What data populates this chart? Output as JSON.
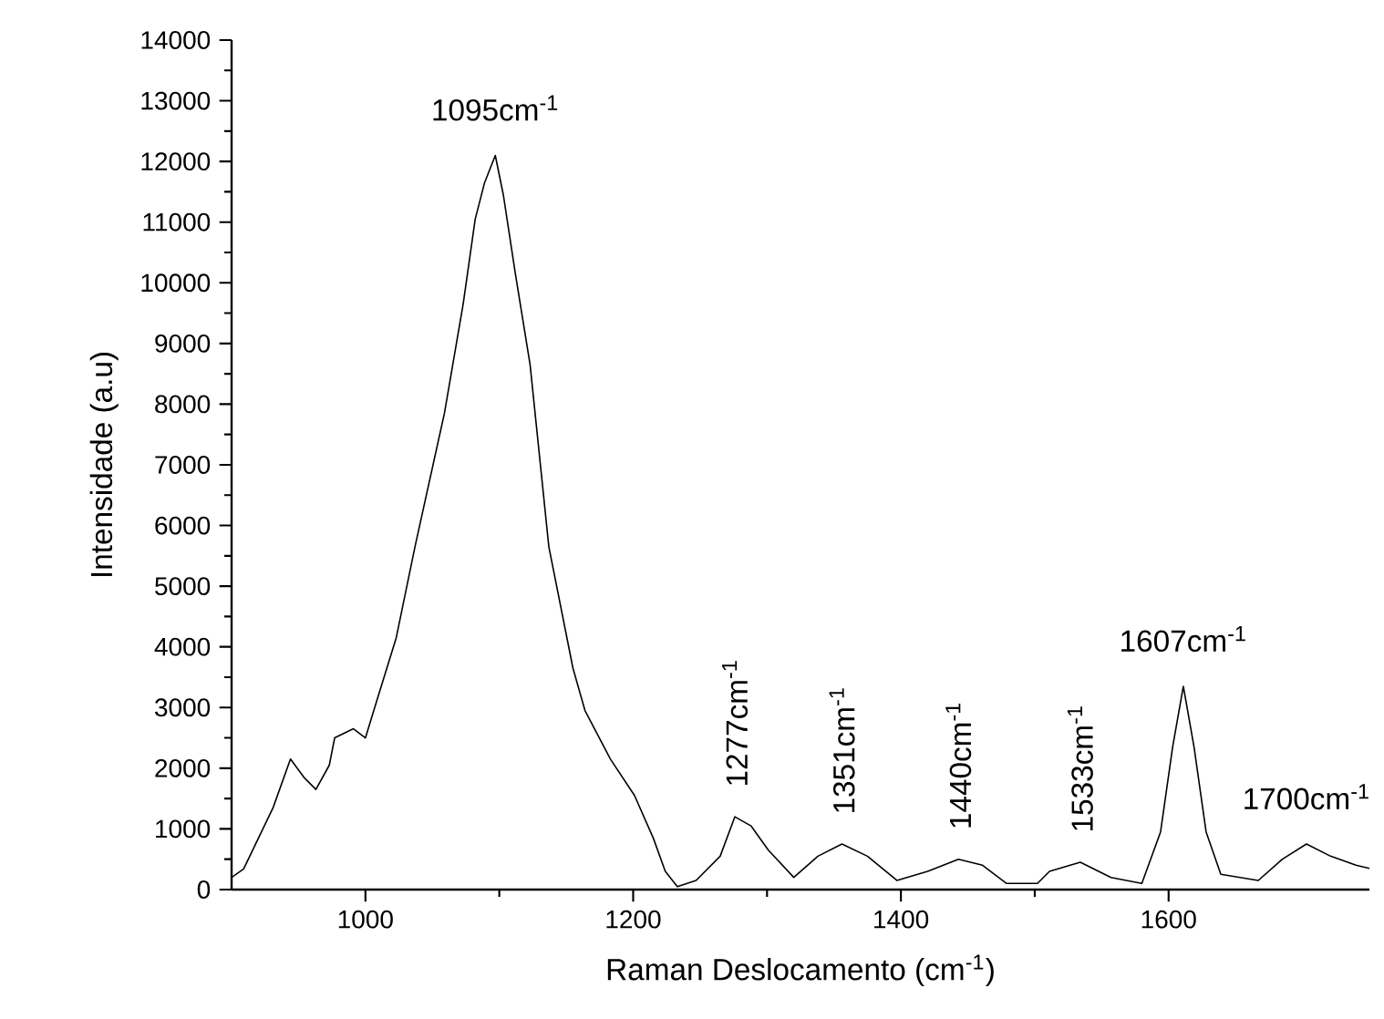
{
  "chart_data": {
    "type": "line",
    "xlabel": "Raman Deslocamento (cm$^{-1}$)",
    "ylabel": "Intensidade (a.u)",
    "xlim": [
      900,
      1750
    ],
    "xticks": [
      1000,
      1200,
      1400,
      1600
    ],
    "ylim": [
      0,
      14000
    ],
    "yticks": [
      0,
      1000,
      2000,
      3000,
      4000,
      5000,
      6000,
      7000,
      8000,
      9000,
      10000,
      11000,
      12000,
      13000,
      14000
    ],
    "marker": "none",
    "line_style": "solid",
    "series": [
      {
        "color": "#000000",
        "x": [
          900,
          909,
          931,
          944,
          954,
          963,
          973,
          977,
          991,
          1000,
          1009,
          1023,
          1037,
          1046,
          1059,
          1073,
          1082,
          1089,
          1097,
          1103,
          1112,
          1123,
          1137,
          1155,
          1164,
          1183,
          1201,
          1215,
          1224,
          1233,
          1247,
          1265,
          1276,
          1288,
          1301,
          1320,
          1338,
          1356,
          1375,
          1397,
          1420,
          1443,
          1461,
          1479,
          1502,
          1511,
          1534,
          1557,
          1580,
          1594,
          1603,
          1611,
          1619,
          1628,
          1639,
          1667,
          1685,
          1703,
          1721,
          1740,
          1750
        ],
        "values": [
          200,
          340,
          1350,
          2150,
          1850,
          1650,
          2050,
          2500,
          2650,
          2500,
          3150,
          4150,
          5650,
          6550,
          7850,
          9650,
          11050,
          11650,
          12100,
          11450,
          10150,
          8650,
          5650,
          3650,
          2950,
          2150,
          1550,
          850,
          300,
          50,
          150,
          550,
          1200,
          1050,
          650,
          200,
          550,
          750,
          550,
          150,
          300,
          500,
          400,
          100,
          100,
          300,
          450,
          200,
          100,
          950,
          2350,
          3350,
          2350,
          950,
          250,
          150,
          500,
          750,
          550,
          400,
          350
        ]
      }
    ],
    "annotations": [
      {
        "text": "1095cm$^{-1}$",
        "x": 1097,
        "y": 12100
      },
      {
        "text": "1277cm$^{-1}$",
        "x": 1276,
        "y": 1200
      },
      {
        "text": "1351cm$^{-1}$",
        "x": 1356,
        "y": 750
      },
      {
        "text": "1440cm$^{-1}$",
        "x": 1443,
        "y": 500
      },
      {
        "text": "1533cm$^{-1}$",
        "x": 1534,
        "y": 450
      },
      {
        "text": "1607cm$^{-1}$",
        "x": 1611,
        "y": 3350
      },
      {
        "text": "1700cm$^{-1}$",
        "x": 1703,
        "y": 750
      }
    ]
  }
}
